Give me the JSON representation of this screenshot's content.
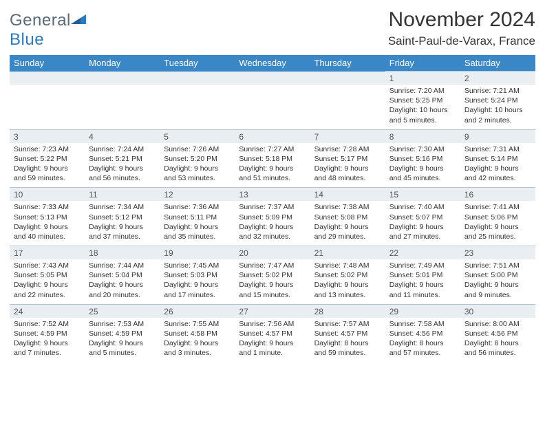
{
  "brand": {
    "part1": "General",
    "part2": "Blue"
  },
  "title": "November 2024",
  "location": "Saint-Paul-de-Varax, France",
  "colors": {
    "header_bg": "#3a87c8",
    "header_fg": "#ffffff",
    "num_bg": "#e9eef2",
    "text": "#333333",
    "logo_gray": "#5a6a7a",
    "logo_blue": "#2a7ac0"
  },
  "dayNames": [
    "Sunday",
    "Monday",
    "Tuesday",
    "Wednesday",
    "Thursday",
    "Friday",
    "Saturday"
  ],
  "weeks": [
    [
      null,
      null,
      null,
      null,
      null,
      {
        "n": "1",
        "sr": "Sunrise: 7:20 AM",
        "ss": "Sunset: 5:25 PM",
        "dl": "Daylight: 10 hours and 5 minutes."
      },
      {
        "n": "2",
        "sr": "Sunrise: 7:21 AM",
        "ss": "Sunset: 5:24 PM",
        "dl": "Daylight: 10 hours and 2 minutes."
      }
    ],
    [
      {
        "n": "3",
        "sr": "Sunrise: 7:23 AM",
        "ss": "Sunset: 5:22 PM",
        "dl": "Daylight: 9 hours and 59 minutes."
      },
      {
        "n": "4",
        "sr": "Sunrise: 7:24 AM",
        "ss": "Sunset: 5:21 PM",
        "dl": "Daylight: 9 hours and 56 minutes."
      },
      {
        "n": "5",
        "sr": "Sunrise: 7:26 AM",
        "ss": "Sunset: 5:20 PM",
        "dl": "Daylight: 9 hours and 53 minutes."
      },
      {
        "n": "6",
        "sr": "Sunrise: 7:27 AM",
        "ss": "Sunset: 5:18 PM",
        "dl": "Daylight: 9 hours and 51 minutes."
      },
      {
        "n": "7",
        "sr": "Sunrise: 7:28 AM",
        "ss": "Sunset: 5:17 PM",
        "dl": "Daylight: 9 hours and 48 minutes."
      },
      {
        "n": "8",
        "sr": "Sunrise: 7:30 AM",
        "ss": "Sunset: 5:16 PM",
        "dl": "Daylight: 9 hours and 45 minutes."
      },
      {
        "n": "9",
        "sr": "Sunrise: 7:31 AM",
        "ss": "Sunset: 5:14 PM",
        "dl": "Daylight: 9 hours and 42 minutes."
      }
    ],
    [
      {
        "n": "10",
        "sr": "Sunrise: 7:33 AM",
        "ss": "Sunset: 5:13 PM",
        "dl": "Daylight: 9 hours and 40 minutes."
      },
      {
        "n": "11",
        "sr": "Sunrise: 7:34 AM",
        "ss": "Sunset: 5:12 PM",
        "dl": "Daylight: 9 hours and 37 minutes."
      },
      {
        "n": "12",
        "sr": "Sunrise: 7:36 AM",
        "ss": "Sunset: 5:11 PM",
        "dl": "Daylight: 9 hours and 35 minutes."
      },
      {
        "n": "13",
        "sr": "Sunrise: 7:37 AM",
        "ss": "Sunset: 5:09 PM",
        "dl": "Daylight: 9 hours and 32 minutes."
      },
      {
        "n": "14",
        "sr": "Sunrise: 7:38 AM",
        "ss": "Sunset: 5:08 PM",
        "dl": "Daylight: 9 hours and 29 minutes."
      },
      {
        "n": "15",
        "sr": "Sunrise: 7:40 AM",
        "ss": "Sunset: 5:07 PM",
        "dl": "Daylight: 9 hours and 27 minutes."
      },
      {
        "n": "16",
        "sr": "Sunrise: 7:41 AM",
        "ss": "Sunset: 5:06 PM",
        "dl": "Daylight: 9 hours and 25 minutes."
      }
    ],
    [
      {
        "n": "17",
        "sr": "Sunrise: 7:43 AM",
        "ss": "Sunset: 5:05 PM",
        "dl": "Daylight: 9 hours and 22 minutes."
      },
      {
        "n": "18",
        "sr": "Sunrise: 7:44 AM",
        "ss": "Sunset: 5:04 PM",
        "dl": "Daylight: 9 hours and 20 minutes."
      },
      {
        "n": "19",
        "sr": "Sunrise: 7:45 AM",
        "ss": "Sunset: 5:03 PM",
        "dl": "Daylight: 9 hours and 17 minutes."
      },
      {
        "n": "20",
        "sr": "Sunrise: 7:47 AM",
        "ss": "Sunset: 5:02 PM",
        "dl": "Daylight: 9 hours and 15 minutes."
      },
      {
        "n": "21",
        "sr": "Sunrise: 7:48 AM",
        "ss": "Sunset: 5:02 PM",
        "dl": "Daylight: 9 hours and 13 minutes."
      },
      {
        "n": "22",
        "sr": "Sunrise: 7:49 AM",
        "ss": "Sunset: 5:01 PM",
        "dl": "Daylight: 9 hours and 11 minutes."
      },
      {
        "n": "23",
        "sr": "Sunrise: 7:51 AM",
        "ss": "Sunset: 5:00 PM",
        "dl": "Daylight: 9 hours and 9 minutes."
      }
    ],
    [
      {
        "n": "24",
        "sr": "Sunrise: 7:52 AM",
        "ss": "Sunset: 4:59 PM",
        "dl": "Daylight: 9 hours and 7 minutes."
      },
      {
        "n": "25",
        "sr": "Sunrise: 7:53 AM",
        "ss": "Sunset: 4:59 PM",
        "dl": "Daylight: 9 hours and 5 minutes."
      },
      {
        "n": "26",
        "sr": "Sunrise: 7:55 AM",
        "ss": "Sunset: 4:58 PM",
        "dl": "Daylight: 9 hours and 3 minutes."
      },
      {
        "n": "27",
        "sr": "Sunrise: 7:56 AM",
        "ss": "Sunset: 4:57 PM",
        "dl": "Daylight: 9 hours and 1 minute."
      },
      {
        "n": "28",
        "sr": "Sunrise: 7:57 AM",
        "ss": "Sunset: 4:57 PM",
        "dl": "Daylight: 8 hours and 59 minutes."
      },
      {
        "n": "29",
        "sr": "Sunrise: 7:58 AM",
        "ss": "Sunset: 4:56 PM",
        "dl": "Daylight: 8 hours and 57 minutes."
      },
      {
        "n": "30",
        "sr": "Sunrise: 8:00 AM",
        "ss": "Sunset: 4:56 PM",
        "dl": "Daylight: 8 hours and 56 minutes."
      }
    ]
  ]
}
